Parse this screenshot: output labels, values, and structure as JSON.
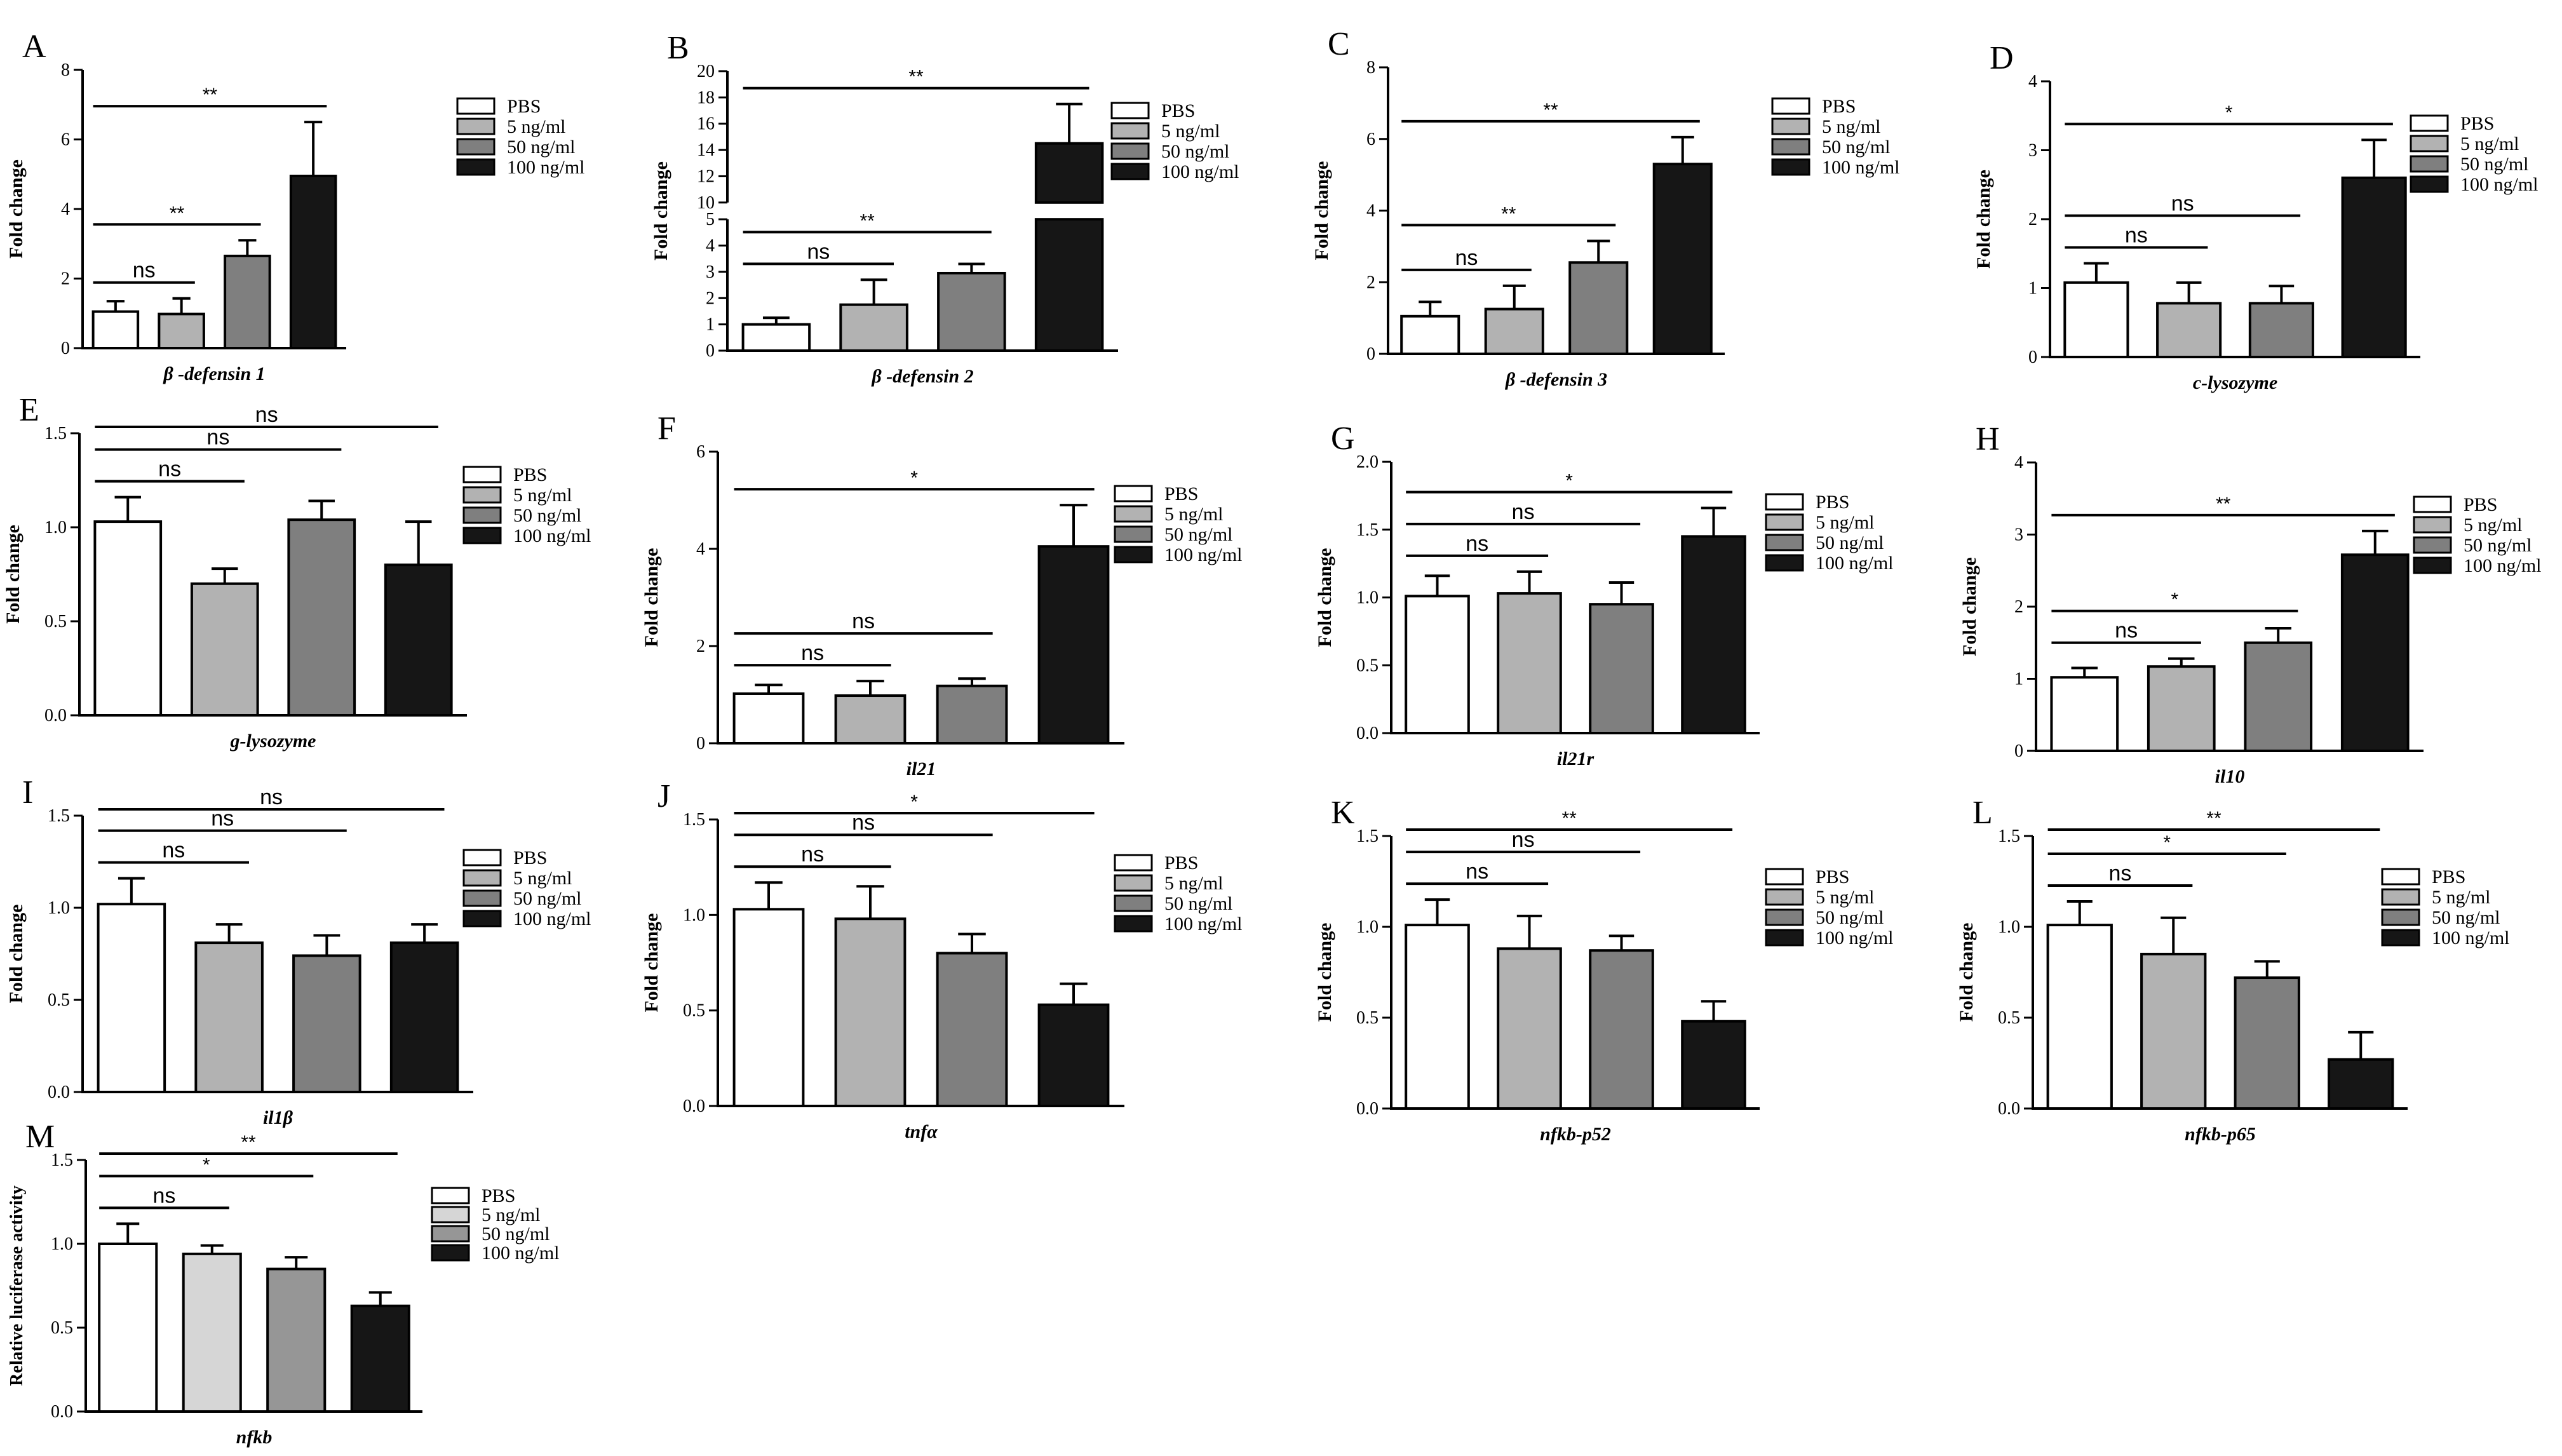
{
  "figure": {
    "colors": {
      "PBS": "#ffffff",
      "5 ng/ml": "#b2b2b2",
      "50 ng/ml": "#808080",
      "100 ng/ml": "#161616",
      "5 ng/ml (M)": "#d6d6d6",
      "axis": "#000000"
    },
    "legend_labels": [
      "PBS",
      "5 ng/ml",
      "50 ng/ml",
      "100 ng/ml"
    ]
  },
  "chart_data": [
    {
      "panel": "A",
      "type": "bar",
      "title": "",
      "xlabel": "β -defensin 1",
      "ylabel": "Fold change",
      "categories": [
        "PBS",
        "5 ng/ml",
        "50 ng/ml",
        "100 ng/ml"
      ],
      "values": [
        1.05,
        0.98,
        2.65,
        4.95
      ],
      "errors": [
        0.3,
        0.45,
        0.45,
        1.55
      ],
      "ylim": [
        0,
        8
      ],
      "yticks": [
        0,
        2,
        4,
        6,
        8
      ],
      "ytick_labels": [
        "0",
        "2",
        "4",
        "6",
        "8"
      ],
      "annotations": [
        {
          "from": 0,
          "to": 1,
          "label": "ns"
        },
        {
          "from": 0,
          "to": 2,
          "label": "**"
        },
        {
          "from": 0,
          "to": 3,
          "label": "**"
        }
      ]
    },
    {
      "panel": "B",
      "type": "bar",
      "title": "",
      "xlabel": "β -defensin 2",
      "ylabel": "Fold change",
      "categories": [
        "PBS",
        "5 ng/ml",
        "50 ng/ml",
        "100 ng/ml"
      ],
      "values": [
        1.0,
        1.75,
        2.95,
        14.5
      ],
      "errors": [
        0.25,
        0.95,
        0.35,
        3.0
      ],
      "ylim": [
        0,
        20
      ],
      "broken_axis": {
        "low": [
          0,
          5
        ],
        "high": [
          10,
          20
        ]
      },
      "yticks": [
        0,
        1,
        2,
        3,
        4,
        5,
        10,
        12,
        14,
        16,
        18,
        20
      ],
      "ytick_labels": [
        "0",
        "1",
        "2",
        "3",
        "4",
        "5",
        "10",
        "12",
        "14",
        "16",
        "18",
        "20"
      ],
      "annotations": [
        {
          "from": 0,
          "to": 1,
          "label": "ns"
        },
        {
          "from": 0,
          "to": 2,
          "label": "**"
        },
        {
          "from": 0,
          "to": 3,
          "label": "**"
        }
      ]
    },
    {
      "panel": "C",
      "type": "bar",
      "title": "",
      "xlabel": "β -defensin 3",
      "ylabel": "Fold change",
      "categories": [
        "PBS",
        "5 ng/ml",
        "50 ng/ml",
        "100 ng/ml"
      ],
      "values": [
        1.05,
        1.25,
        2.55,
        5.3
      ],
      "errors": [
        0.4,
        0.65,
        0.6,
        0.75
      ],
      "ylim": [
        0,
        8
      ],
      "yticks": [
        0,
        2,
        4,
        6,
        8
      ],
      "ytick_labels": [
        "0",
        "2",
        "4",
        "6",
        "8"
      ],
      "annotations": [
        {
          "from": 0,
          "to": 1,
          "label": "ns"
        },
        {
          "from": 0,
          "to": 2,
          "label": "**"
        },
        {
          "from": 0,
          "to": 3,
          "label": "**"
        }
      ]
    },
    {
      "panel": "D",
      "type": "bar",
      "title": "",
      "xlabel": "c-lysozyme",
      "ylabel": "Fold change",
      "categories": [
        "PBS",
        "5 ng/ml",
        "50 ng/ml",
        "100 ng/ml"
      ],
      "values": [
        1.08,
        0.78,
        0.78,
        2.6
      ],
      "errors": [
        0.28,
        0.3,
        0.25,
        0.55
      ],
      "ylim": [
        0,
        4
      ],
      "yticks": [
        0,
        1,
        2,
        3,
        4
      ],
      "ytick_labels": [
        "0",
        "1",
        "2",
        "3",
        "4"
      ],
      "annotations": [
        {
          "from": 0,
          "to": 1,
          "label": "ns"
        },
        {
          "from": 0,
          "to": 2,
          "label": "ns"
        },
        {
          "from": 0,
          "to": 3,
          "label": "*"
        }
      ]
    },
    {
      "panel": "E",
      "type": "bar",
      "title": "",
      "xlabel": "g-lysozyme",
      "ylabel": "Fold change",
      "categories": [
        "PBS",
        "5 ng/ml",
        "50 ng/ml",
        "100 ng/ml"
      ],
      "values": [
        1.03,
        0.7,
        1.04,
        0.8
      ],
      "errors": [
        0.13,
        0.08,
        0.1,
        0.23
      ],
      "ylim": [
        0,
        1.5
      ],
      "yticks": [
        0,
        0.5,
        1,
        1.5
      ],
      "ytick_labels": [
        "0.0",
        "0.5",
        "1.0",
        "1.5"
      ],
      "annotations": [
        {
          "from": 0,
          "to": 1,
          "label": "ns"
        },
        {
          "from": 0,
          "to": 2,
          "label": "ns"
        },
        {
          "from": 0,
          "to": 3,
          "label": "ns"
        }
      ]
    },
    {
      "panel": "F",
      "type": "bar",
      "title": "",
      "xlabel": "il21",
      "ylabel": "Fold change",
      "categories": [
        "PBS",
        "5 ng/ml",
        "50 ng/ml",
        "100 ng/ml"
      ],
      "values": [
        1.02,
        0.98,
        1.18,
        4.05
      ],
      "errors": [
        0.18,
        0.3,
        0.15,
        0.85
      ],
      "ylim": [
        0,
        6
      ],
      "yticks": [
        0,
        2,
        4,
        6
      ],
      "ytick_labels": [
        "0",
        "2",
        "4",
        "6"
      ],
      "annotations": [
        {
          "from": 0,
          "to": 1,
          "label": "ns"
        },
        {
          "from": 0,
          "to": 2,
          "label": "ns"
        },
        {
          "from": 0,
          "to": 3,
          "label": "*"
        }
      ]
    },
    {
      "panel": "G",
      "type": "bar",
      "title": "",
      "xlabel": "il21r",
      "ylabel": "Fold change",
      "categories": [
        "PBS",
        "5 ng/ml",
        "50 ng/ml",
        "100 ng/ml"
      ],
      "values": [
        1.01,
        1.03,
        0.95,
        1.45
      ],
      "errors": [
        0.15,
        0.16,
        0.16,
        0.21
      ],
      "ylim": [
        0,
        2
      ],
      "yticks": [
        0,
        0.5,
        1,
        1.5,
        2
      ],
      "ytick_labels": [
        "0.0",
        "0.5",
        "1.0",
        "1.5",
        "2.0"
      ],
      "annotations": [
        {
          "from": 0,
          "to": 1,
          "label": "ns"
        },
        {
          "from": 0,
          "to": 2,
          "label": "ns"
        },
        {
          "from": 0,
          "to": 3,
          "label": "*"
        }
      ]
    },
    {
      "panel": "H",
      "type": "bar",
      "title": "",
      "xlabel": "il10",
      "ylabel": "Fold change",
      "categories": [
        "PBS",
        "5 ng/ml",
        "50 ng/ml",
        "100 ng/ml"
      ],
      "values": [
        1.02,
        1.17,
        1.5,
        2.72
      ],
      "errors": [
        0.13,
        0.11,
        0.2,
        0.33
      ],
      "ylim": [
        0,
        4
      ],
      "yticks": [
        0,
        1,
        2,
        3,
        4
      ],
      "ytick_labels": [
        "0",
        "1",
        "2",
        "3",
        "4"
      ],
      "annotations": [
        {
          "from": 0,
          "to": 1,
          "label": "ns"
        },
        {
          "from": 0,
          "to": 2,
          "label": "*"
        },
        {
          "from": 0,
          "to": 3,
          "label": "**"
        }
      ]
    },
    {
      "panel": "I",
      "type": "bar",
      "title": "",
      "xlabel": "il1β",
      "ylabel": "Fold change",
      "categories": [
        "PBS",
        "5 ng/ml",
        "50 ng/ml",
        "100 ng/ml"
      ],
      "values": [
        1.02,
        0.81,
        0.74,
        0.81
      ],
      "errors": [
        0.14,
        0.1,
        0.11,
        0.1
      ],
      "ylim": [
        0,
        1.5
      ],
      "yticks": [
        0,
        0.5,
        1,
        1.5
      ],
      "ytick_labels": [
        "0.0",
        "0.5",
        "1.0",
        "1.5"
      ],
      "annotations": [
        {
          "from": 0,
          "to": 1,
          "label": "ns"
        },
        {
          "from": 0,
          "to": 2,
          "label": "ns"
        },
        {
          "from": 0,
          "to": 3,
          "label": "ns"
        }
      ]
    },
    {
      "panel": "J",
      "type": "bar",
      "title": "",
      "xlabel": "tnfα",
      "ylabel": "Fold change",
      "categories": [
        "PBS",
        "5 ng/ml",
        "50 ng/ml",
        "100 ng/ml"
      ],
      "values": [
        1.03,
        0.98,
        0.8,
        0.53
      ],
      "errors": [
        0.14,
        0.17,
        0.1,
        0.11
      ],
      "ylim": [
        0,
        1.5
      ],
      "yticks": [
        0,
        0.5,
        1,
        1.5
      ],
      "ytick_labels": [
        "0.0",
        "0.5",
        "1.0",
        "1.5"
      ],
      "annotations": [
        {
          "from": 0,
          "to": 1,
          "label": "ns"
        },
        {
          "from": 0,
          "to": 2,
          "label": "ns"
        },
        {
          "from": 0,
          "to": 3,
          "label": "*"
        }
      ]
    },
    {
      "panel": "K",
      "type": "bar",
      "title": "",
      "xlabel": "nfkb-p52",
      "ylabel": "Fold change",
      "categories": [
        "PBS",
        "5 ng/ml",
        "50 ng/ml",
        "100 ng/ml"
      ],
      "values": [
        1.01,
        0.88,
        0.87,
        0.48
      ],
      "errors": [
        0.14,
        0.18,
        0.08,
        0.11
      ],
      "ylim": [
        0,
        1.5
      ],
      "yticks": [
        0,
        0.5,
        1,
        1.5
      ],
      "ytick_labels": [
        "0.0",
        "0.5",
        "1.0",
        "1.5"
      ],
      "annotations": [
        {
          "from": 0,
          "to": 1,
          "label": "ns"
        },
        {
          "from": 0,
          "to": 2,
          "label": "ns"
        },
        {
          "from": 0,
          "to": 3,
          "label": "**"
        }
      ]
    },
    {
      "panel": "L",
      "type": "bar",
      "title": "",
      "xlabel": "nfkb-p65",
      "ylabel": "Fold change",
      "categories": [
        "PBS",
        "5 ng/ml",
        "50 ng/ml",
        "100 ng/ml"
      ],
      "values": [
        1.01,
        0.85,
        0.72,
        0.27
      ],
      "errors": [
        0.13,
        0.2,
        0.09,
        0.15
      ],
      "ylim": [
        0,
        1.5
      ],
      "yticks": [
        0,
        0.5,
        1,
        1.5
      ],
      "ytick_labels": [
        "0.0",
        "0.5",
        "1.0",
        "1.5"
      ],
      "annotations": [
        {
          "from": 0,
          "to": 1,
          "label": "ns"
        },
        {
          "from": 0,
          "to": 2,
          "label": "*"
        },
        {
          "from": 0,
          "to": 3,
          "label": "**"
        }
      ]
    },
    {
      "panel": "M",
      "type": "bar",
      "title": "",
      "xlabel": "nfkb",
      "ylabel": "Relative luciferase activity",
      "categories": [
        "PBS",
        "5 ng/ml",
        "50 ng/ml",
        "100 ng/ml"
      ],
      "values": [
        1.0,
        0.94,
        0.85,
        0.63
      ],
      "errors": [
        0.12,
        0.05,
        0.07,
        0.08
      ],
      "ylim": [
        0,
        1.5
      ],
      "yticks": [
        0,
        0.5,
        1,
        1.5
      ],
      "ytick_labels": [
        "0.0",
        "0.5",
        "1.0",
        "1.5"
      ],
      "annotations": [
        {
          "from": 0,
          "to": 1,
          "label": "ns"
        },
        {
          "from": 0,
          "to": 2,
          "label": "*"
        },
        {
          "from": 0,
          "to": 3,
          "label": "**"
        }
      ]
    }
  ]
}
